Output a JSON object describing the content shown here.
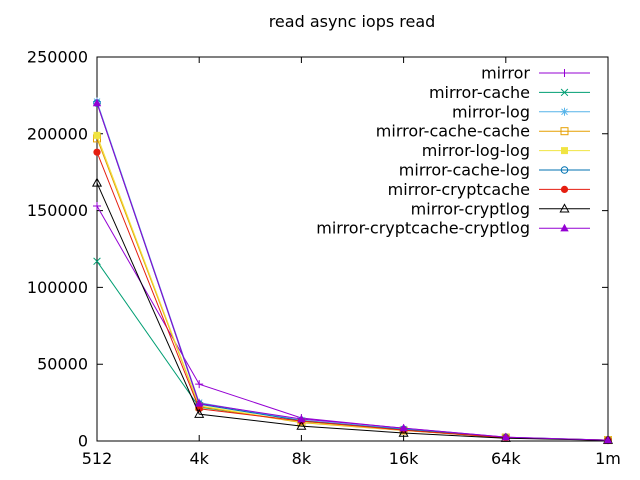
{
  "title": "read async iops read",
  "axes": {
    "y_tick_labels": [
      "0",
      "50000",
      "100000",
      "150000",
      "200000",
      "250000"
    ],
    "x_tick_labels": [
      "512",
      "4k",
      "8k",
      "16k",
      "64k",
      "1m"
    ]
  },
  "colors": {
    "foreground": "#000000",
    "background": "#ffffff"
  },
  "chart_data": {
    "type": "line",
    "title": "read async iops read",
    "xlabel": "",
    "ylabel": "",
    "categories": [
      "512",
      "4k",
      "8k",
      "16k",
      "64k",
      "1m"
    ],
    "ylim": [
      0,
      250000
    ],
    "ytick_interval": 50000,
    "grid": false,
    "legend_position": "top-right-inside",
    "series": [
      {
        "name": "mirror",
        "color": "#9400D3",
        "marker": "plus",
        "values": [
          153000,
          37000,
          15000,
          8300,
          2500,
          600
        ]
      },
      {
        "name": "mirror-cache",
        "color": "#009E73",
        "marker": "x",
        "values": [
          117000,
          22000,
          12500,
          7000,
          2200,
          600
        ]
      },
      {
        "name": "mirror-log",
        "color": "#56B4E9",
        "marker": "asterisk",
        "values": [
          221000,
          25000,
          13500,
          7800,
          2400,
          600
        ]
      },
      {
        "name": "mirror-cache-cache",
        "color": "#E69F00",
        "marker": "square-open",
        "values": [
          197000,
          22500,
          12000,
          6800,
          2200,
          600
        ]
      },
      {
        "name": "mirror-log-log",
        "color": "#F0E442",
        "marker": "square-filled",
        "values": [
          199000,
          23000,
          12300,
          7000,
          2300,
          600
        ]
      },
      {
        "name": "mirror-cache-log",
        "color": "#0072B2",
        "marker": "circle-open",
        "values": [
          220000,
          24000,
          13200,
          7500,
          2300,
          600
        ]
      },
      {
        "name": "mirror-cryptcache",
        "color": "#E51E10",
        "marker": "circle-filled",
        "values": [
          188000,
          21000,
          13000,
          7100,
          2100,
          550
        ]
      },
      {
        "name": "mirror-cryptlog",
        "color": "#000000",
        "marker": "triangle-open",
        "values": [
          168000,
          17500,
          9700,
          5200,
          1800,
          500
        ]
      },
      {
        "name": "mirror-cryptcache-cryptlog",
        "color": "#9400D3",
        "marker": "triangle-filled",
        "values": [
          220000,
          24500,
          14300,
          8400,
          2500,
          600
        ]
      }
    ]
  }
}
